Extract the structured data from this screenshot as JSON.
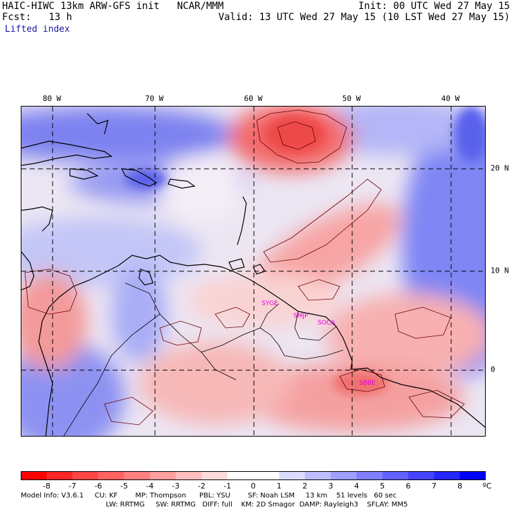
{
  "header": {
    "title": "HAIC-HIWC 13km ARW-GFS init   NCAR/MMM",
    "fcst": "Fcst:   13 h",
    "init": "Init: 00 UTC Wed 27 May 15",
    "valid": "Valid: 13 UTC Wed 27 May 15 (10 LST Wed 27 May 15)",
    "field": "Lifted index"
  },
  "map": {
    "lon_labels": [
      "80 W",
      "70 W",
      "60 W",
      "50 W",
      "40 W"
    ],
    "lat_labels": [
      "20 N",
      "10 N",
      "0"
    ],
    "stations": [
      "SYGE",
      "SMJP",
      "SOCA",
      "SBBE"
    ],
    "colors": {
      "negative": "#ff3030",
      "positive": "#3030ff",
      "neutral": "#ffffff",
      "contour": "#5a0000",
      "coast": "#000000",
      "station": "#e000e0"
    }
  },
  "colorbar": {
    "ticks": [
      "-8",
      "-7",
      "-6",
      "-5",
      "-4",
      "-3",
      "-2",
      "-1",
      "0",
      "1",
      "2",
      "3",
      "4",
      "5",
      "6",
      "7",
      "8"
    ],
    "unit": "ºC",
    "colors": [
      "#ff0000",
      "#ff2626",
      "#ff4545",
      "#ff6262",
      "#ff8080",
      "#ff9f9f",
      "#ffbdbd",
      "#ffdcdc",
      "#ffffff",
      "#dcdcff",
      "#bdbdff",
      "#9f9fff",
      "#8080ff",
      "#6262ff",
      "#4545ff",
      "#2626ff",
      "#0000ff"
    ]
  },
  "model_info": {
    "line1": "Model Info: V3.6.1     CU: KF        MP: Thompson      PBL: YSU        SF: Noah LSM     13 km    51 levels   60 sec",
    "line2": "LW: RRTMG     SW: RRTMG   DIFF: full    KM: 2D Smagor  DAMP: Rayleigh3    SFLAY: MM5"
  }
}
